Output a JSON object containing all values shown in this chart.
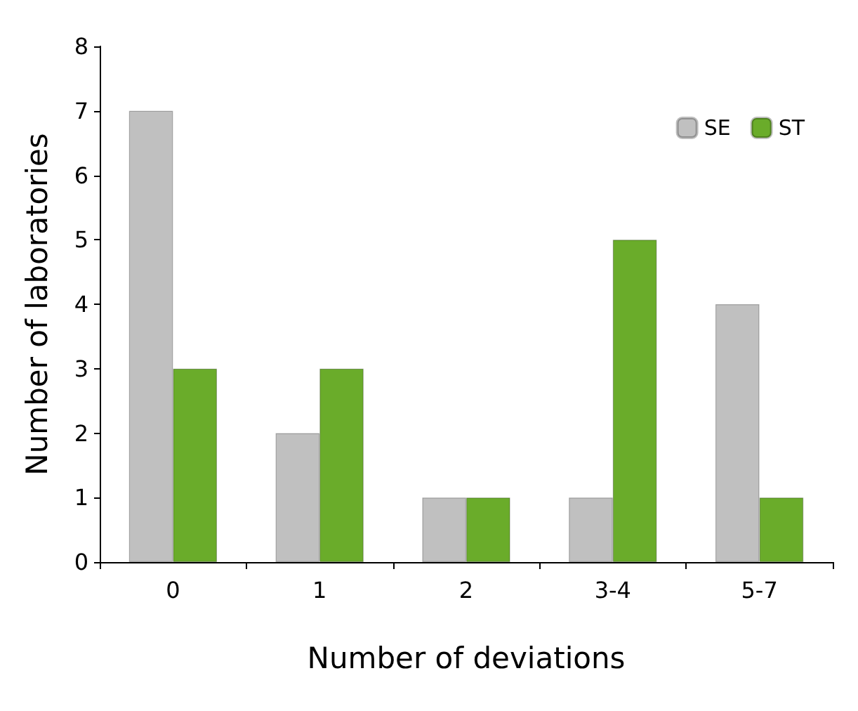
{
  "chart_data": {
    "type": "bar",
    "xlabel": "Number of deviations",
    "ylabel": "Number of laboratories",
    "categories": [
      "0",
      "1",
      "2",
      "3-4",
      "5-7"
    ],
    "series": [
      {
        "name": "SE",
        "color": "#c0c0c0",
        "values": [
          7,
          2,
          1,
          1,
          4
        ]
      },
      {
        "name": "ST",
        "color": "#6aac2a",
        "values": [
          3,
          3,
          1,
          5,
          1
        ]
      }
    ],
    "ylim": [
      0,
      8
    ],
    "yticks": [
      0,
      1,
      2,
      3,
      4,
      5,
      6,
      7,
      8
    ],
    "grid": false,
    "legend": "top right"
  }
}
